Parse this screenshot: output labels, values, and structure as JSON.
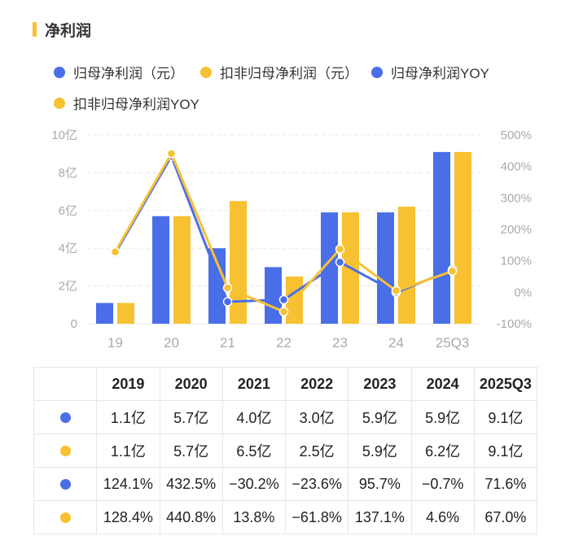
{
  "page": {
    "title": "净利润"
  },
  "colors": {
    "blue": "#4a6ee8",
    "yellow": "#f8c131",
    "accent": "#f8c131",
    "grid": "#e8e8e8"
  },
  "legend": [
    {
      "label": "归母净利润（元）",
      "color": "#4a6ee8"
    },
    {
      "label": "扣非归母净利润（元）",
      "color": "#f8c131"
    },
    {
      "label": "归母净利润YOY",
      "color": "#4a6ee8"
    },
    {
      "label": "扣非归母净利润YOY",
      "color": "#f8c131"
    }
  ],
  "chart_data": {
    "type": "bar",
    "categories": [
      "19",
      "20",
      "21",
      "22",
      "23",
      "24",
      "25Q3"
    ],
    "left_axis": {
      "ticks": [
        "0",
        "2亿",
        "4亿",
        "6亿",
        "8亿",
        "10亿"
      ],
      "range": [
        0,
        10
      ]
    },
    "right_axis": {
      "ticks": [
        "-100%",
        "0%",
        "100%",
        "200%",
        "300%",
        "400%",
        "500%"
      ],
      "range": [
        -100,
        500
      ]
    },
    "series": [
      {
        "name": "归母净利润（元）",
        "kind": "bar",
        "axis": "left",
        "color": "#4a6ee8",
        "values": [
          1.1,
          5.7,
          4.0,
          3.0,
          5.9,
          5.9,
          9.1
        ]
      },
      {
        "name": "扣非归母净利润（元）",
        "kind": "bar",
        "axis": "left",
        "color": "#f8c131",
        "values": [
          1.1,
          5.7,
          6.5,
          2.5,
          5.9,
          6.2,
          9.1
        ]
      },
      {
        "name": "归母净利润YOY",
        "kind": "line",
        "axis": "right",
        "color": "#4a6ee8",
        "values": [
          124.1,
          432.5,
          -30.2,
          -23.6,
          95.7,
          -0.7,
          71.6
        ]
      },
      {
        "name": "扣非归母净利润YOY",
        "kind": "line",
        "axis": "right",
        "color": "#f8c131",
        "values": [
          128.4,
          440.8,
          13.8,
          -61.8,
          137.1,
          4.6,
          67.0
        ]
      }
    ]
  },
  "table": {
    "headers": [
      "2019",
      "2020",
      "2021",
      "2022",
      "2023",
      "2024",
      "2025Q3"
    ],
    "rows": [
      {
        "color": "#4a6ee8",
        "cells": [
          "1.1亿",
          "5.7亿",
          "4.0亿",
          "3.0亿",
          "5.9亿",
          "5.9亿",
          "9.1亿"
        ]
      },
      {
        "color": "#f8c131",
        "cells": [
          "1.1亿",
          "5.7亿",
          "6.5亿",
          "2.5亿",
          "5.9亿",
          "6.2亿",
          "9.1亿"
        ]
      },
      {
        "color": "#4a6ee8",
        "cells": [
          "124.1%",
          "432.5%",
          "−30.2%",
          "−23.6%",
          "95.7%",
          "−0.7%",
          "71.6%"
        ]
      },
      {
        "color": "#f8c131",
        "cells": [
          "128.4%",
          "440.8%",
          "13.8%",
          "−61.8%",
          "137.1%",
          "4.6%",
          "67.0%"
        ]
      }
    ]
  }
}
